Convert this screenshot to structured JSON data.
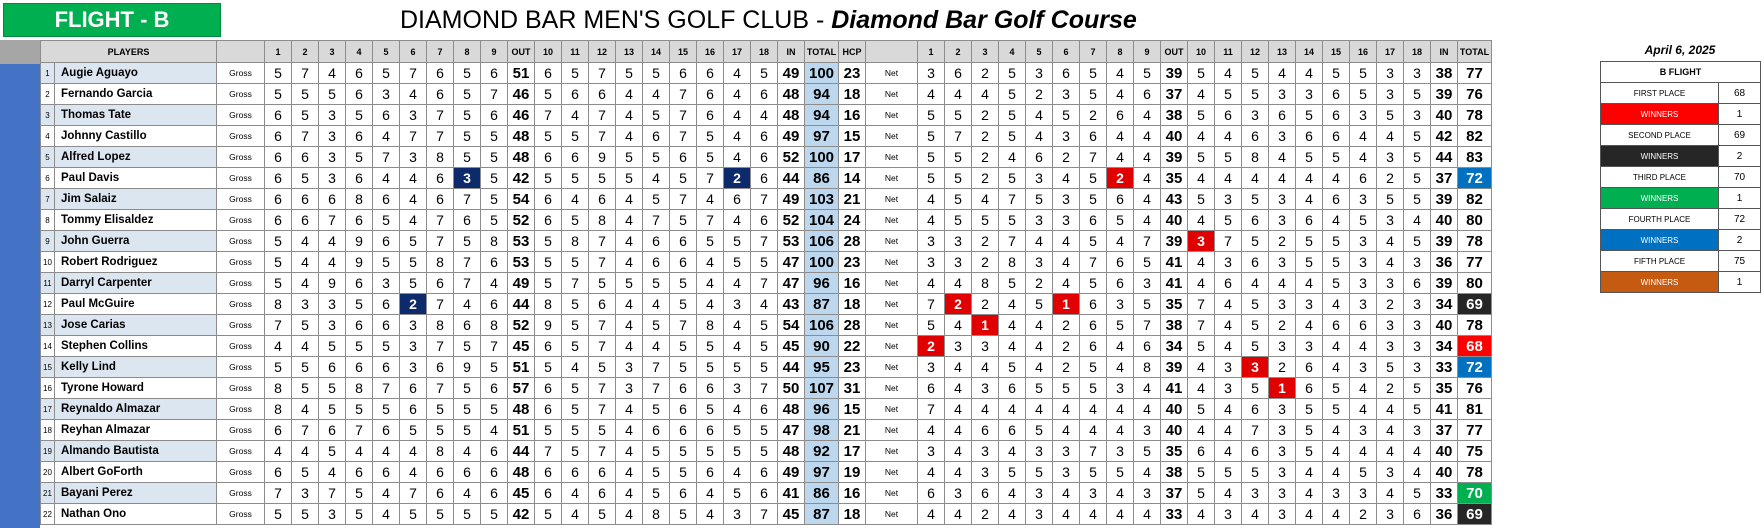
{
  "flight_label": "FLIGHT - B",
  "club_title": "DIAMOND BAR MEN'S GOLF CLUB - ",
  "course_title": "Diamond Bar Golf Course",
  "date": "April 6, 2025",
  "headers": {
    "players": "PLAYERS",
    "holes": [
      "1",
      "2",
      "3",
      "4",
      "5",
      "6",
      "7",
      "8",
      "9",
      "OUT",
      "10",
      "11",
      "12",
      "13",
      "14",
      "15",
      "16",
      "17",
      "18",
      "IN",
      "TOTAL",
      "HCP"
    ],
    "net_holes": [
      "1",
      "2",
      "3",
      "4",
      "5",
      "6",
      "7",
      "8",
      "9",
      "OUT",
      "10",
      "11",
      "12",
      "13",
      "14",
      "15",
      "16",
      "17",
      "18",
      "IN",
      "TOTAL"
    ]
  },
  "players": [
    {
      "no": "1",
      "name": "Augie Aguayo",
      "gross_label": "Gross",
      "net_label": "Net",
      "gross": [
        5,
        7,
        4,
        6,
        5,
        7,
        6,
        5,
        6,
        51,
        6,
        5,
        7,
        5,
        5,
        6,
        6,
        4,
        5,
        49,
        100
      ],
      "hcp": 23,
      "net": [
        3,
        6,
        2,
        5,
        3,
        6,
        5,
        4,
        5,
        39,
        5,
        4,
        5,
        4,
        4,
        5,
        5,
        3,
        3,
        38,
        77
      ]
    },
    {
      "no": "2",
      "name": "Fernando Garcia",
      "gross_label": "Gross",
      "net_label": "Net",
      "gross": [
        5,
        5,
        5,
        6,
        3,
        4,
        6,
        5,
        7,
        46,
        5,
        6,
        6,
        4,
        4,
        7,
        6,
        4,
        6,
        48,
        94
      ],
      "hcp": 18,
      "net": [
        4,
        4,
        4,
        5,
        2,
        3,
        5,
        4,
        6,
        37,
        4,
        5,
        5,
        3,
        3,
        6,
        5,
        3,
        5,
        39,
        76
      ]
    },
    {
      "no": "3",
      "name": "Thomas Tate",
      "gross_label": "Gross",
      "net_label": "Net",
      "gross": [
        6,
        5,
        3,
        5,
        6,
        3,
        7,
        5,
        6,
        46,
        7,
        4,
        7,
        4,
        5,
        7,
        6,
        4,
        4,
        48,
        94
      ],
      "hcp": 16,
      "net": [
        5,
        5,
        2,
        5,
        4,
        5,
        2,
        6,
        4,
        38,
        5,
        6,
        3,
        6,
        5,
        6,
        3,
        5,
        3,
        40,
        78
      ]
    },
    {
      "no": "4",
      "name": "Johnny Castillo",
      "gross_label": "Gross",
      "net_label": "Net",
      "gross": [
        6,
        7,
        3,
        6,
        4,
        7,
        7,
        5,
        5,
        48,
        5,
        5,
        7,
        4,
        6,
        7,
        5,
        4,
        6,
        49,
        97
      ],
      "hcp": 15,
      "net": [
        5,
        7,
        2,
        5,
        4,
        3,
        6,
        4,
        4,
        40,
        4,
        4,
        6,
        3,
        6,
        6,
        4,
        4,
        5,
        42,
        82
      ]
    },
    {
      "no": "5",
      "name": "Alfred Lopez",
      "gross_label": "Gross",
      "net_label": "Net",
      "gross": [
        6,
        6,
        3,
        5,
        7,
        3,
        8,
        5,
        5,
        48,
        6,
        6,
        9,
        5,
        5,
        6,
        5,
        4,
        6,
        52,
        100
      ],
      "hcp": 17,
      "net": [
        5,
        5,
        2,
        4,
        6,
        2,
        7,
        4,
        4,
        39,
        5,
        5,
        8,
        4,
        5,
        5,
        4,
        3,
        5,
        44,
        83
      ]
    },
    {
      "no": "6",
      "name": "Paul Davis",
      "gross_label": "Gross",
      "net_label": "Net",
      "gross": [
        6,
        5,
        3,
        6,
        4,
        4,
        6,
        3,
        5,
        42,
        5,
        5,
        5,
        5,
        4,
        5,
        7,
        2,
        6,
        44,
        86
      ],
      "hcp": 14,
      "net": [
        5,
        5,
        2,
        5,
        3,
        4,
        5,
        2,
        4,
        35,
        4,
        4,
        4,
        4,
        4,
        4,
        6,
        2,
        5,
        37,
        72
      ]
    },
    {
      "no": "7",
      "name": "Jim Salaiz",
      "gross_label": "Gross",
      "net_label": "Net",
      "gross": [
        6,
        6,
        6,
        8,
        6,
        4,
        6,
        7,
        5,
        54,
        6,
        4,
        6,
        4,
        5,
        7,
        4,
        6,
        7,
        49,
        103
      ],
      "hcp": 21,
      "net": [
        4,
        5,
        4,
        7,
        5,
        3,
        5,
        6,
        4,
        43,
        5,
        3,
        5,
        3,
        4,
        6,
        3,
        5,
        5,
        39,
        82
      ]
    },
    {
      "no": "8",
      "name": "Tommy Elisaldez",
      "gross_label": "Gross",
      "net_label": "Net",
      "gross": [
        6,
        6,
        7,
        6,
        5,
        4,
        7,
        6,
        5,
        52,
        6,
        5,
        8,
        4,
        7,
        5,
        7,
        4,
        6,
        52,
        104
      ],
      "hcp": 24,
      "net": [
        4,
        5,
        5,
        5,
        3,
        3,
        6,
        5,
        4,
        40,
        4,
        5,
        6,
        3,
        6,
        4,
        5,
        3,
        4,
        40,
        80
      ]
    },
    {
      "no": "9",
      "name": "John Guerra",
      "gross_label": "Gross",
      "net_label": "Net",
      "gross": [
        5,
        4,
        4,
        9,
        6,
        5,
        7,
        5,
        8,
        53,
        5,
        8,
        7,
        4,
        6,
        6,
        5,
        5,
        7,
        53,
        106
      ],
      "hcp": 28,
      "net": [
        3,
        3,
        2,
        7,
        4,
        4,
        5,
        4,
        7,
        39,
        3,
        7,
        5,
        2,
        5,
        5,
        3,
        4,
        5,
        39,
        78
      ]
    },
    {
      "no": "10",
      "name": "Robert Rodriguez",
      "gross_label": "Gross",
      "net_label": "Net",
      "gross": [
        5,
        4,
        4,
        9,
        5,
        5,
        8,
        7,
        6,
        53,
        5,
        5,
        7,
        4,
        6,
        6,
        4,
        5,
        5,
        47,
        100
      ],
      "hcp": 23,
      "net": [
        3,
        3,
        2,
        8,
        3,
        4,
        7,
        6,
        5,
        41,
        4,
        3,
        6,
        3,
        5,
        5,
        3,
        4,
        3,
        36,
        77
      ]
    },
    {
      "no": "11",
      "name": "Darryl Carpenter",
      "gross_label": "Gross",
      "net_label": "Net",
      "gross": [
        5,
        4,
        9,
        6,
        3,
        5,
        6,
        7,
        4,
        49,
        5,
        7,
        5,
        5,
        5,
        5,
        4,
        4,
        7,
        47,
        96
      ],
      "hcp": 16,
      "net": [
        4,
        4,
        8,
        5,
        2,
        4,
        5,
        6,
        3,
        41,
        4,
        6,
        4,
        4,
        4,
        5,
        3,
        3,
        6,
        39,
        80
      ]
    },
    {
      "no": "12",
      "name": "Paul McGuire",
      "gross_label": "Gross",
      "net_label": "Net",
      "gross": [
        8,
        3,
        3,
        5,
        6,
        2,
        7,
        4,
        6,
        44,
        8,
        5,
        6,
        4,
        4,
        5,
        4,
        3,
        4,
        43,
        87
      ],
      "hcp": 18,
      "net": [
        7,
        2,
        2,
        4,
        5,
        1,
        6,
        3,
        5,
        35,
        7,
        4,
        5,
        3,
        3,
        4,
        3,
        2,
        3,
        34,
        69
      ]
    },
    {
      "no": "13",
      "name": "Jose Carias",
      "gross_label": "Gross",
      "net_label": "Net",
      "gross": [
        7,
        5,
        3,
        6,
        6,
        3,
        8,
        6,
        8,
        52,
        9,
        5,
        7,
        4,
        5,
        7,
        8,
        4,
        5,
        54,
        106
      ],
      "hcp": 28,
      "net": [
        5,
        4,
        1,
        4,
        4,
        2,
        6,
        5,
        7,
        38,
        7,
        4,
        5,
        2,
        4,
        6,
        6,
        3,
        3,
        40,
        78
      ]
    },
    {
      "no": "14",
      "name": "Stephen Collins",
      "gross_label": "Gross",
      "net_label": "Net",
      "gross": [
        4,
        4,
        5,
        5,
        5,
        3,
        7,
        5,
        7,
        45,
        6,
        5,
        7,
        4,
        4,
        5,
        5,
        4,
        5,
        45,
        90
      ],
      "hcp": 22,
      "net": [
        2,
        3,
        3,
        4,
        4,
        2,
        6,
        4,
        6,
        34,
        5,
        4,
        5,
        3,
        3,
        4,
        4,
        3,
        3,
        34,
        68
      ]
    },
    {
      "no": "15",
      "name": "Kelly Lind",
      "gross_label": "Gross",
      "net_label": "Net",
      "gross": [
        5,
        5,
        6,
        6,
        6,
        3,
        6,
        9,
        5,
        51,
        5,
        4,
        5,
        3,
        7,
        5,
        5,
        5,
        5,
        44,
        95
      ],
      "hcp": 23,
      "net": [
        3,
        4,
        4,
        5,
        4,
        2,
        5,
        4,
        8,
        39,
        4,
        3,
        3,
        2,
        6,
        4,
        3,
        5,
        3,
        33,
        72
      ]
    },
    {
      "no": "16",
      "name": "Tyrone Howard",
      "gross_label": "Gross",
      "net_label": "Net",
      "gross": [
        8,
        5,
        5,
        8,
        7,
        6,
        7,
        5,
        6,
        57,
        6,
        5,
        7,
        3,
        7,
        6,
        6,
        3,
        7,
        50,
        107
      ],
      "hcp": 31,
      "net": [
        6,
        4,
        3,
        6,
        5,
        5,
        5,
        3,
        4,
        41,
        4,
        3,
        5,
        1,
        6,
        5,
        4,
        2,
        5,
        35,
        76
      ]
    },
    {
      "no": "17",
      "name": "Reynaldo Almazar",
      "gross_label": "Gross",
      "net_label": "Net",
      "gross": [
        8,
        4,
        5,
        5,
        5,
        6,
        5,
        5,
        5,
        48,
        6,
        5,
        7,
        4,
        5,
        6,
        5,
        4,
        6,
        48,
        96
      ],
      "hcp": 15,
      "net": [
        7,
        4,
        4,
        4,
        4,
        4,
        4,
        4,
        4,
        40,
        5,
        4,
        6,
        3,
        5,
        5,
        4,
        4,
        5,
        41,
        81
      ]
    },
    {
      "no": "18",
      "name": "Reyhan Almazar",
      "gross_label": "Gross",
      "net_label": "Net",
      "gross": [
        6,
        7,
        6,
        7,
        6,
        5,
        5,
        5,
        4,
        51,
        5,
        5,
        5,
        4,
        6,
        6,
        6,
        5,
        5,
        47,
        98
      ],
      "hcp": 21,
      "net": [
        4,
        4,
        6,
        6,
        5,
        4,
        4,
        4,
        3,
        40,
        4,
        4,
        7,
        3,
        5,
        4,
        3,
        4,
        3,
        37,
        77
      ]
    },
    {
      "no": "19",
      "name": "Almando Bautista",
      "gross_label": "Gross",
      "net_label": "Net",
      "gross": [
        4,
        4,
        5,
        4,
        4,
        4,
        8,
        4,
        6,
        44,
        7,
        5,
        7,
        4,
        5,
        5,
        5,
        5,
        5,
        48,
        92
      ],
      "hcp": 17,
      "net": [
        3,
        4,
        3,
        4,
        3,
        3,
        7,
        3,
        5,
        35,
        6,
        4,
        6,
        3,
        5,
        4,
        4,
        4,
        4,
        40,
        75
      ]
    },
    {
      "no": "20",
      "name": "Albert GoForth",
      "gross_label": "Gross",
      "net_label": "Net",
      "gross": [
        6,
        5,
        4,
        6,
        6,
        4,
        6,
        6,
        6,
        48,
        6,
        6,
        6,
        4,
        5,
        5,
        6,
        4,
        6,
        49,
        97
      ],
      "hcp": 19,
      "net": [
        4,
        4,
        3,
        5,
        5,
        3,
        5,
        5,
        4,
        38,
        5,
        5,
        5,
        3,
        4,
        4,
        5,
        3,
        4,
        40,
        78
      ]
    },
    {
      "no": "21",
      "name": "Bayani Perez",
      "gross_label": "Gross",
      "net_label": "Net",
      "gross": [
        7,
        3,
        7,
        5,
        4,
        7,
        6,
        4,
        6,
        45,
        6,
        4,
        6,
        4,
        5,
        6,
        4,
        5,
        6,
        41,
        86
      ],
      "hcp": 16,
      "net": [
        6,
        3,
        6,
        4,
        3,
        4,
        3,
        4,
        3,
        37,
        5,
        4,
        3,
        3,
        4,
        3,
        3,
        4,
        5,
        33,
        70
      ]
    },
    {
      "no": "22",
      "name": "Nathan Ono",
      "gross_label": "Gross",
      "net_label": "Net",
      "gross": [
        5,
        5,
        3,
        5,
        4,
        5,
        5,
        5,
        5,
        42,
        5,
        4,
        5,
        4,
        8,
        5,
        4,
        3,
        7,
        45,
        87
      ],
      "hcp": 18,
      "net": [
        4,
        4,
        2,
        4,
        3,
        4,
        4,
        4,
        4,
        33,
        4,
        3,
        4,
        3,
        4,
        4,
        2,
        3,
        6,
        36,
        69
      ]
    }
  ],
  "side": {
    "title": "B FLIGHT",
    "rows": [
      {
        "label": "FIRST PLACE",
        "value": "68",
        "style": ""
      },
      {
        "label": "WINNERS",
        "value": "1",
        "style": "w-red"
      },
      {
        "label": "SECOND PLACE",
        "value": "69",
        "style": ""
      },
      {
        "label": "WINNERS",
        "value": "2",
        "style": "w-dark"
      },
      {
        "label": "THIRD PLACE",
        "value": "70",
        "style": ""
      },
      {
        "label": "WINNERS",
        "value": "1",
        "style": "w-green"
      },
      {
        "label": "FOURTH PLACE",
        "value": "72",
        "style": ""
      },
      {
        "label": "WINNERS",
        "value": "2",
        "style": "w-blue"
      },
      {
        "label": "FIFTH PLACE",
        "value": "75",
        "style": ""
      },
      {
        "label": "WINNERS",
        "value": "1",
        "style": "w-orange"
      }
    ]
  },
  "highlights": {
    "gross_navy": [
      [
        5,
        7
      ],
      [
        5,
        17
      ],
      [
        11,
        5
      ]
    ],
    "net_red": [
      [
        5,
        7
      ],
      [
        8,
        10
      ],
      [
        11,
        1
      ],
      [
        11,
        5
      ],
      [
        12,
        2
      ],
      [
        13,
        0
      ],
      [
        14,
        12
      ],
      [
        15,
        13
      ]
    ],
    "net_total_colors": {
      "5": "c-blue",
      "11": "c-dark",
      "13": "c-red",
      "14": "c-blue",
      "20": "c-green",
      "21": "c-dark"
    },
    "colors": {
      "navy": "#0d2a6b",
      "red": "#e00000",
      "total_blue": "#bdd7ee",
      "flight_green": "#00b050",
      "side_blue": "#4472c4"
    }
  }
}
